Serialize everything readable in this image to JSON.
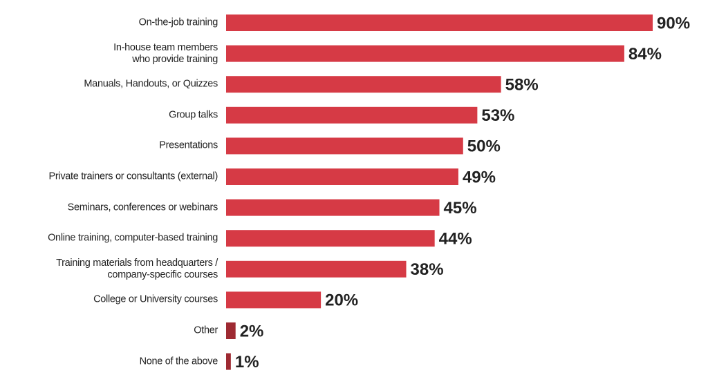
{
  "chart_data": {
    "type": "bar",
    "orientation": "horizontal",
    "categories": [
      "On-the-job training",
      "In-house team members\nwho provide training",
      "Manuals, Handouts, or Quizzes",
      "Group talks",
      "Presentations",
      "Private trainers or consultants (external)",
      "Seminars, conferences or webinars",
      "Online training, computer-based training",
      "Training materials from headquarters /\ncompany-specific courses",
      "College or University courses",
      "Other",
      "None of the above"
    ],
    "values": [
      90,
      84,
      58,
      53,
      50,
      49,
      45,
      44,
      38,
      20,
      2,
      1
    ],
    "value_labels": [
      "90%",
      "84%",
      "58%",
      "53%",
      "50%",
      "49%",
      "45%",
      "44%",
      "38%",
      "20%",
      "2%",
      "1%"
    ],
    "colors": [
      "#d63a45",
      "#d63a45",
      "#d63a45",
      "#d63a45",
      "#d63a45",
      "#d63a45",
      "#d63a45",
      "#d63a45",
      "#d63a45",
      "#d63a45",
      "#9e2a32",
      "#9e2a32"
    ],
    "xlim": [
      0,
      100
    ]
  }
}
